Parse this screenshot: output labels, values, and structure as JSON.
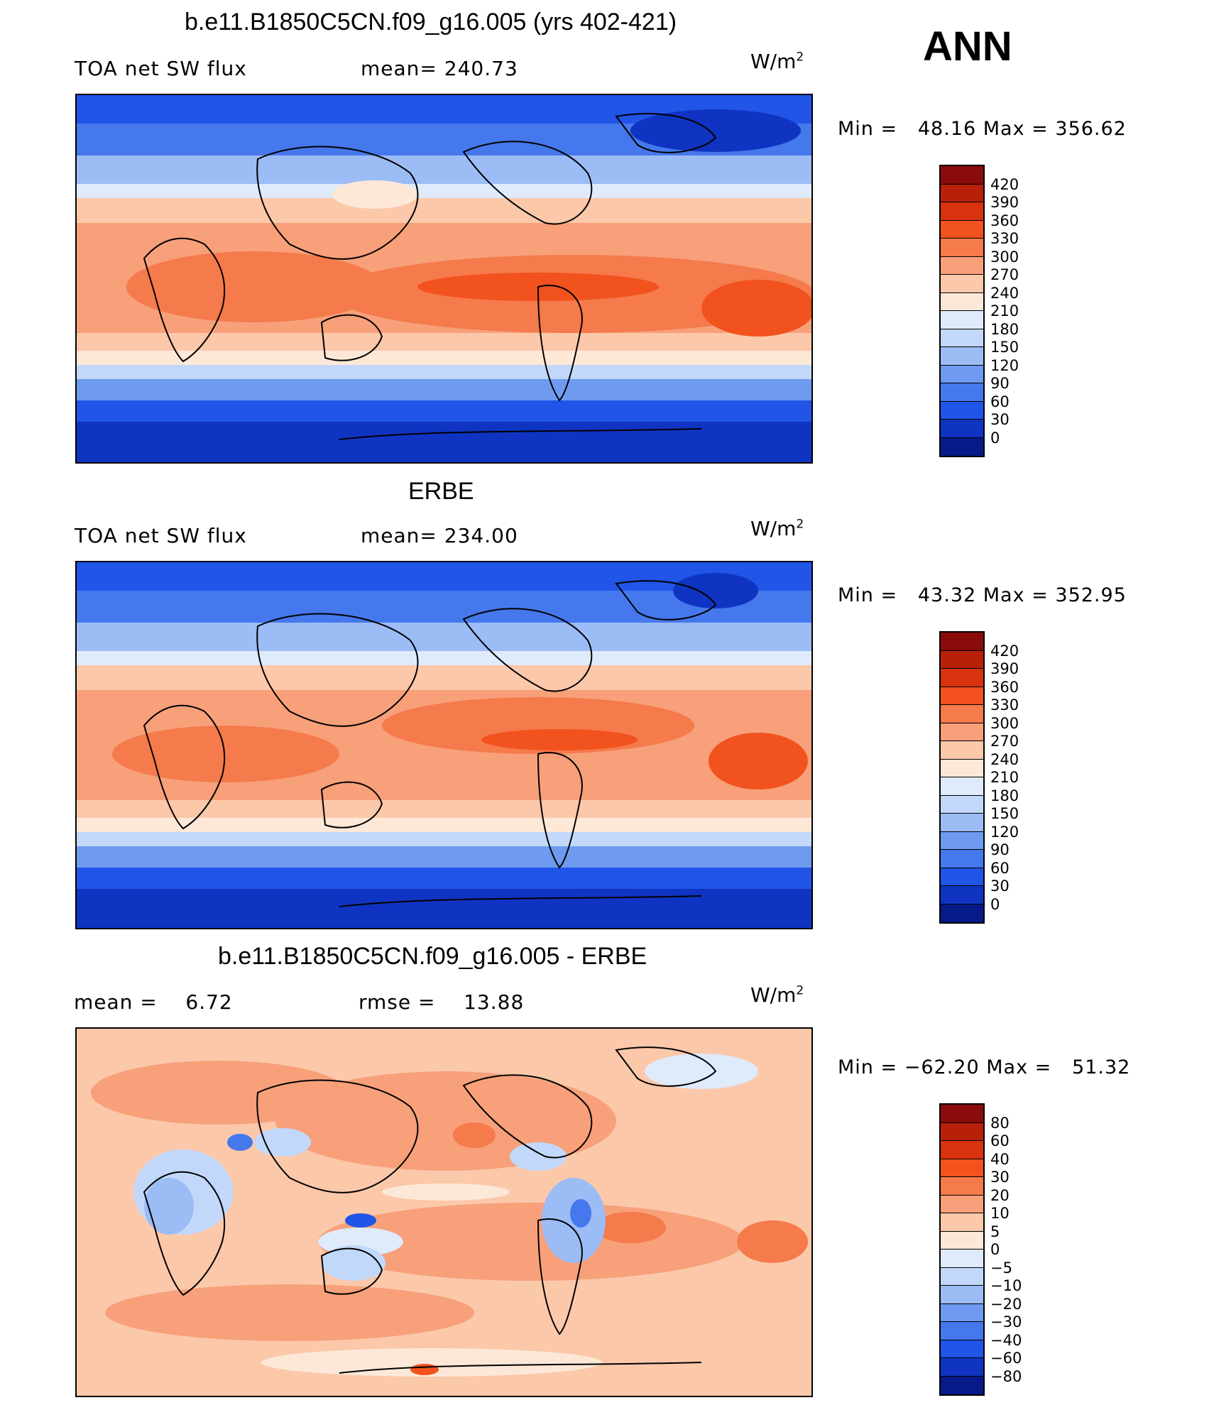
{
  "season": "ANN",
  "units_base": "W/m",
  "units_exp": "2",
  "panels": [
    {
      "title": "b.e11.B1850C5CN.f09_g16.005 (yrs 402-421)",
      "left_label": "TOA net SW flux",
      "stat_label": "mean=",
      "stat_value": "240.73",
      "min_label": "Min =",
      "min_value": "48.16",
      "max_label": "Max =",
      "max_value": "356.62"
    },
    {
      "title": "ERBE",
      "left_label": "TOA net SW flux",
      "stat_label": "mean=",
      "stat_value": "234.00",
      "min_label": "Min =",
      "min_value": "43.32",
      "max_label": "Max =",
      "max_value": "352.95"
    },
    {
      "title": "b.e11.B1850C5CN.f09_g16.005 - ERBE",
      "mean_label": "mean =",
      "mean_value": "6.72",
      "rmse_label": "rmse =",
      "rmse_value": "13.88",
      "min_label": "Min =",
      "min_value": "−62.20",
      "max_label": "Max =",
      "max_value": "51.32"
    }
  ],
  "colorbars": {
    "abs_levels": [
      "420",
      "390",
      "360",
      "330",
      "300",
      "270",
      "240",
      "210",
      "180",
      "150",
      "120",
      "90",
      "60",
      "30",
      "0"
    ],
    "abs_colors": [
      "#8b0a0a",
      "#b8200a",
      "#d8330e",
      "#f2521e",
      "#f57a4c",
      "#f7a07a",
      "#fbc8aa",
      "#fde8d8",
      "#dfeafa",
      "#c2d8fa",
      "#9cbcf6",
      "#6e9bf0",
      "#4578ec",
      "#2055e8",
      "#0f34c2",
      "#061a8a"
    ],
    "diff_levels": [
      "80",
      "60",
      "40",
      "30",
      "20",
      "10",
      "5",
      "0",
      "−5",
      "−10",
      "−20",
      "−30",
      "−40",
      "−60",
      "−80"
    ],
    "diff_colors": [
      "#8b0a0a",
      "#b8200a",
      "#d8330e",
      "#f2521e",
      "#f57a4c",
      "#f7a07a",
      "#fbc8aa",
      "#fde8d8",
      "#dfeafa",
      "#c2d8fa",
      "#9cbcf6",
      "#6e9bf0",
      "#4578ec",
      "#2055e8",
      "#0f34c2",
      "#061a8a"
    ]
  },
  "chart_data": [
    {
      "type": "heatmap",
      "title": "b.e11.B1850C5CN.f09_g16.005 (yrs 402-421)",
      "variable": "TOA net SW flux",
      "units": "W/m2",
      "mean": 240.73,
      "min": 48.16,
      "max": 356.62,
      "levels": [
        0,
        30,
        60,
        90,
        120,
        150,
        180,
        210,
        240,
        270,
        300,
        330,
        360,
        390,
        420
      ],
      "zonal_band_values": [
        60,
        120,
        210,
        290,
        320,
        300,
        220,
        120,
        30
      ],
      "zonal_band_lat": [
        80,
        60,
        40,
        20,
        0,
        -20,
        -40,
        -60,
        -80
      ]
    },
    {
      "type": "heatmap",
      "title": "ERBE",
      "variable": "TOA net SW flux",
      "units": "W/m2",
      "mean": 234.0,
      "min": 43.32,
      "max": 352.95,
      "levels": [
        0,
        30,
        60,
        90,
        120,
        150,
        180,
        210,
        240,
        270,
        300,
        330,
        360,
        390,
        420
      ],
      "zonal_band_values": [
        55,
        115,
        205,
        285,
        315,
        295,
        215,
        115,
        30
      ],
      "zonal_band_lat": [
        80,
        60,
        40,
        20,
        0,
        -20,
        -40,
        -60,
        -80
      ]
    },
    {
      "type": "heatmap",
      "title": "b.e11.B1850C5CN.f09_g16.005 - ERBE",
      "units": "W/m2",
      "mean": 6.72,
      "rmse": 13.88,
      "min": -62.2,
      "max": 51.32,
      "levels": [
        -80,
        -60,
        -40,
        -30,
        -20,
        -10,
        -5,
        0,
        5,
        10,
        20,
        30,
        40,
        60,
        80
      ]
    }
  ]
}
